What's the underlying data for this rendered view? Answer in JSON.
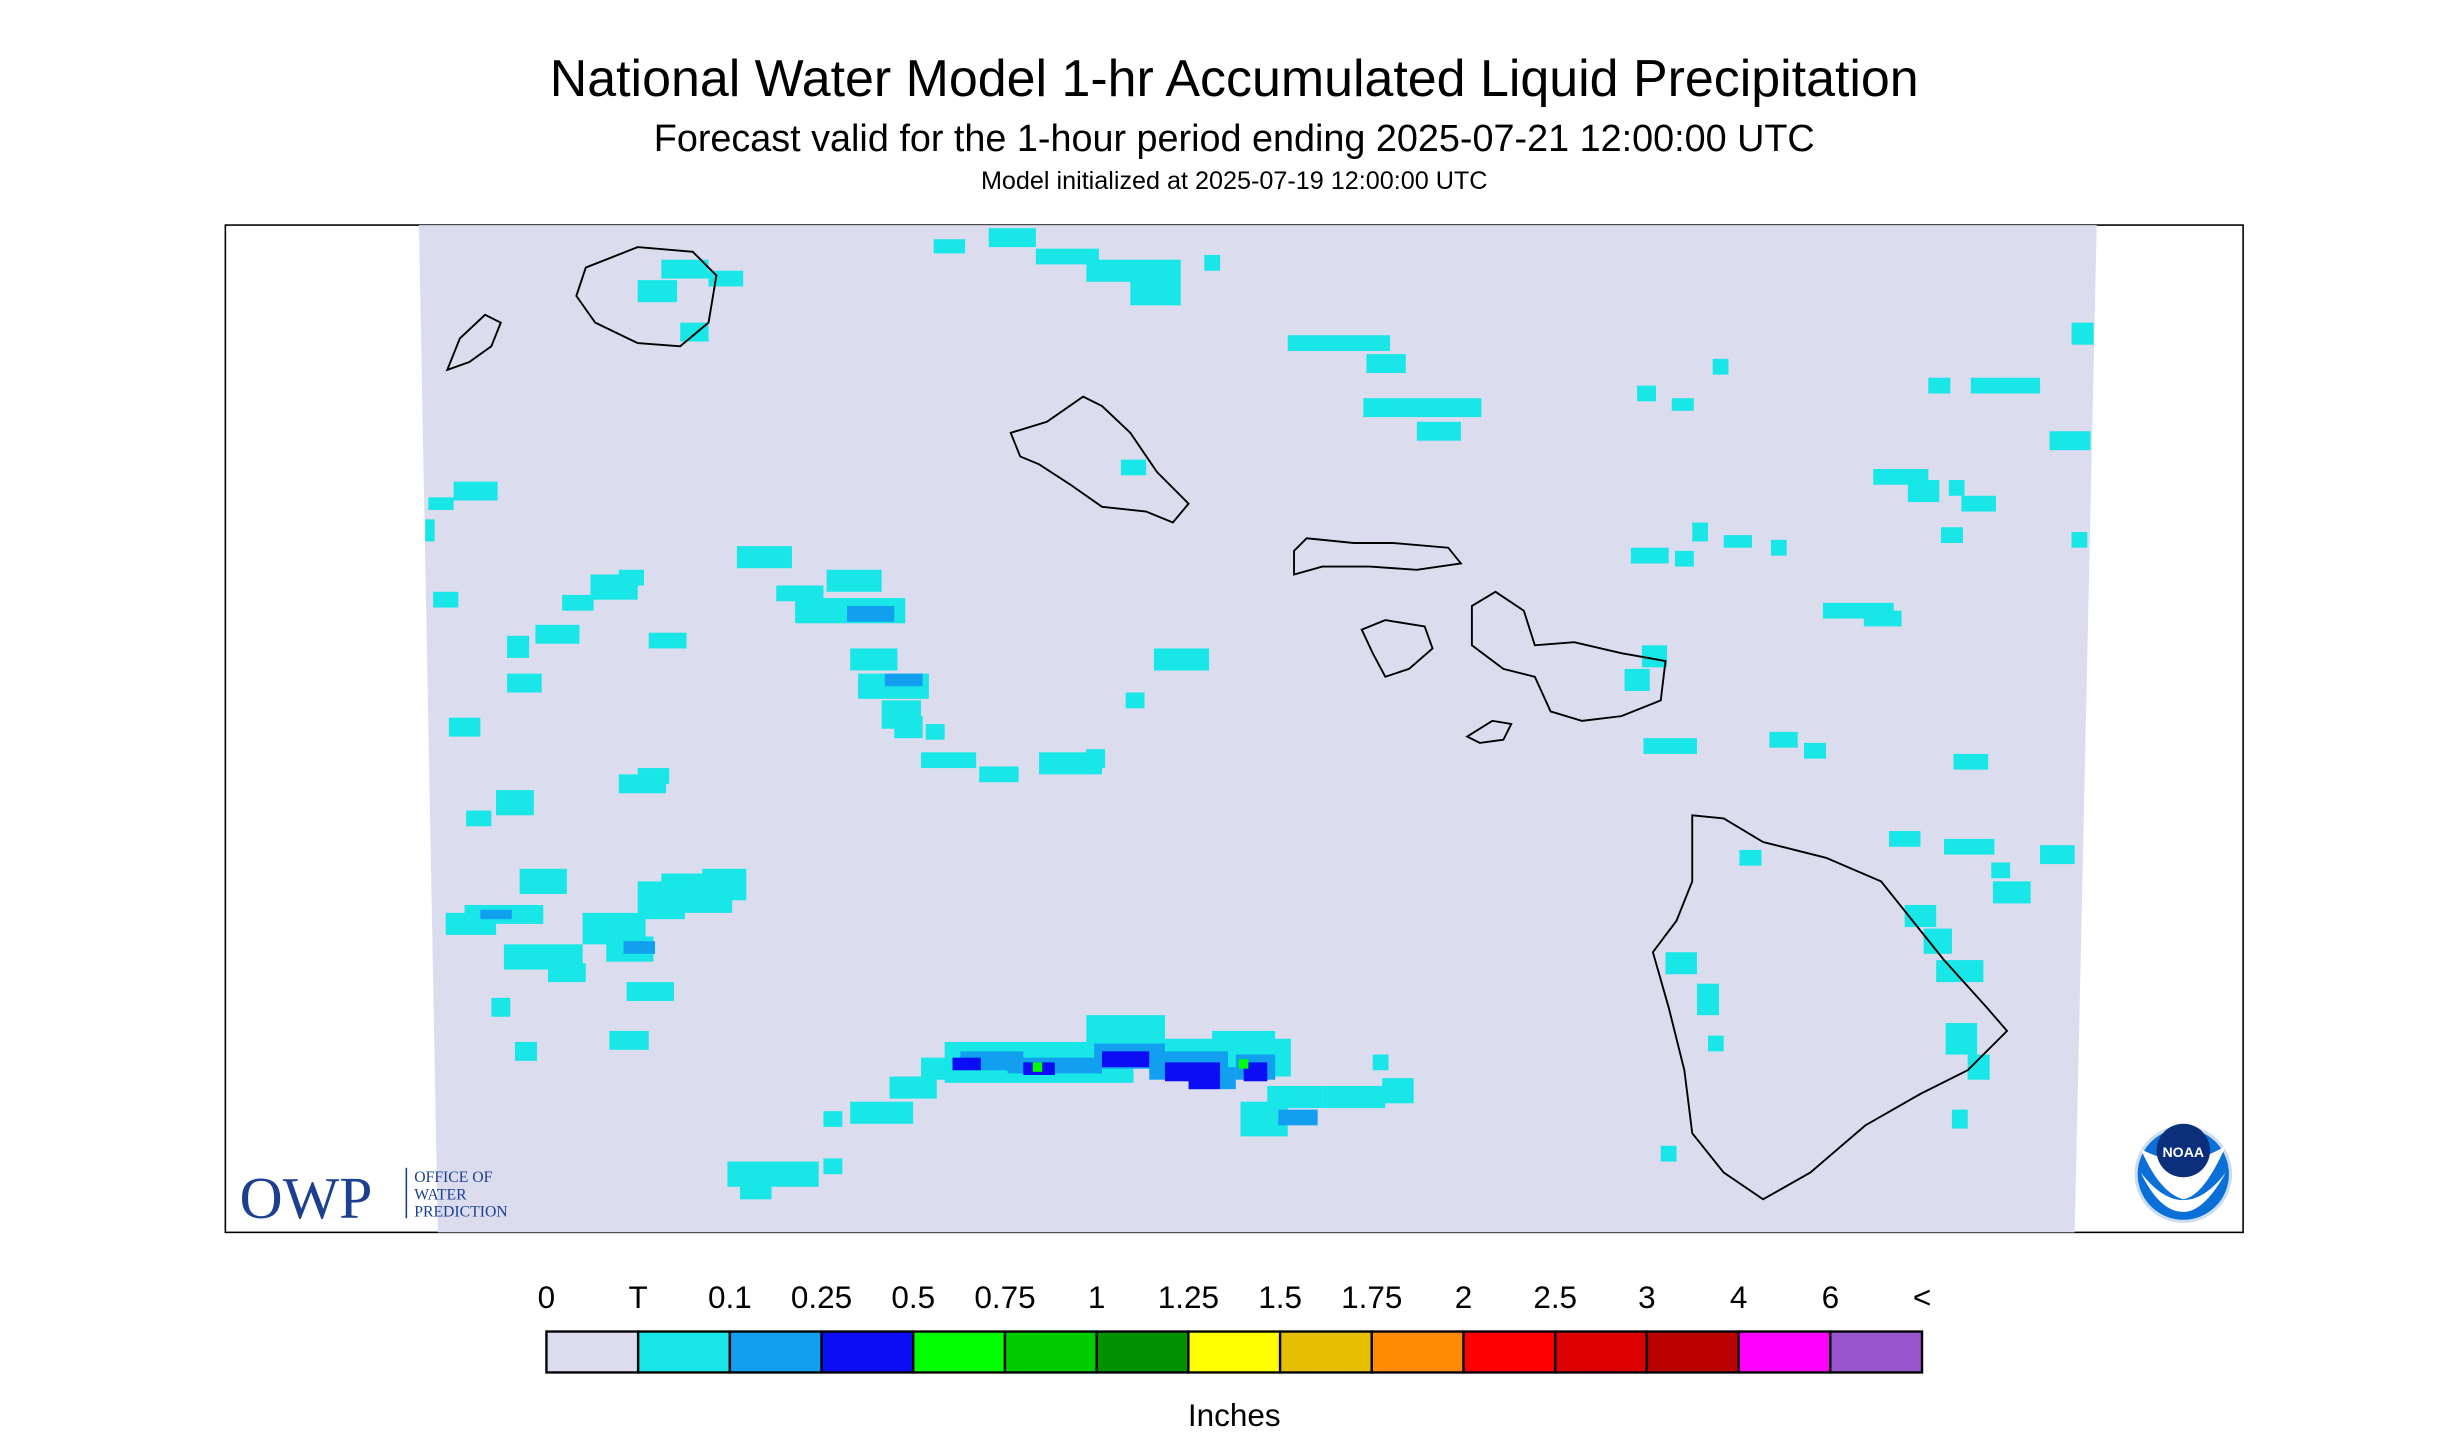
{
  "header": {
    "title": "National Water Model 1-hr Accumulated Liquid Precipitation",
    "subtitle": "Forecast valid for the 1-hour period ending 2025-07-21 12:00:00 UTC",
    "init": "Model initialized at 2025-07-19 12:00:00 UTC"
  },
  "legend": {
    "labels": [
      "0",
      "T",
      "0.1",
      "0.25",
      "0.5",
      "0.75",
      "1",
      "1.25",
      "1.5",
      "1.75",
      "2",
      "2.5",
      "3",
      "4",
      "6",
      "<"
    ],
    "colors": [
      "#dcdcef",
      "#19e6e6",
      "#139ff0",
      "#0c0cf5",
      "#00ff00",
      "#00cc00",
      "#009000",
      "#ffff00",
      "#e6c000",
      "#ff8c00",
      "#ff0000",
      "#dd0000",
      "#bb0000",
      "#ff00ff",
      "#9955cc"
    ],
    "unit": "Inches"
  },
  "logos": {
    "owp": "OWP",
    "owp_line1": "OFFICE OF",
    "owp_line2": "WATER",
    "owp_line3": "PREDICTION",
    "noaa": "NOAA"
  }
}
